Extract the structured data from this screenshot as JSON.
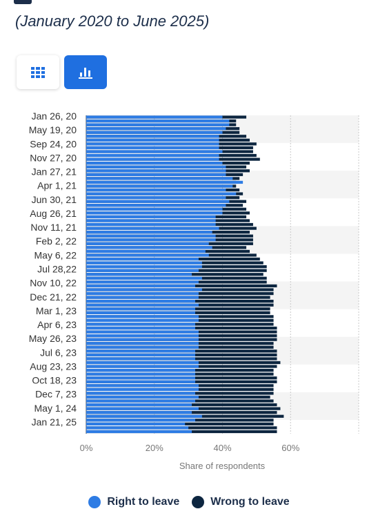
{
  "header": {
    "date_range": "(January 2020 to June 2025)"
  },
  "view_toggle": {
    "table_icon": "grid-icon",
    "chart_icon": "bar-chart-icon",
    "active": "chart"
  },
  "colors": {
    "right_to_leave": "#2e7ce4",
    "wrong_to_leave": "#0d2640",
    "toggle_active": "#1f6fe0",
    "band": "#f4f4f4"
  },
  "chart_data": {
    "type": "bar",
    "orientation": "horizontal",
    "xlabel": "Share of respondents",
    "xlim": [
      0,
      80
    ],
    "x_ticks": [
      "0%",
      "20%",
      "40%",
      "60%"
    ],
    "grid": true,
    "legend_placement": "bottom",
    "y_tick_labels": [
      "Jan 26, 20",
      "May 19, 20",
      "Sep 24, 20",
      "Nov 27, 20",
      "Jan 27, 21",
      "Apr 1, 21",
      "Jun 30, 21",
      "Aug 26, 21",
      "Nov 11, 21",
      "Feb 2, 22",
      "May 6, 22",
      "Jul 28,22",
      "Nov 10, 22",
      "Dec 21, 22",
      "Mar 1, 23",
      "Apr 6, 23",
      "May 26, 23",
      "Jul 6, 23",
      "Aug 23, 23",
      "Oct 18, 23",
      "Dec 7, 23",
      "May 1, 24",
      "Jan 21, 25"
    ],
    "series": [
      {
        "name": "Right to leave",
        "values": [
          40,
          42,
          42,
          41,
          40,
          39,
          39,
          39,
          39,
          40,
          39,
          39,
          40,
          41,
          41,
          41,
          43,
          46,
          43,
          41,
          44,
          41,
          42,
          41,
          40,
          40,
          38,
          38,
          38,
          39,
          37,
          38,
          38,
          36,
          37,
          35,
          36,
          33,
          34,
          34,
          33,
          31,
          34,
          33,
          32,
          34,
          33,
          33,
          32,
          33,
          32,
          32,
          33,
          33,
          32,
          32,
          33,
          33,
          33,
          33,
          33,
          32,
          32,
          32,
          33,
          33,
          32,
          32,
          32,
          32,
          33,
          33,
          32,
          33,
          32,
          31,
          33,
          31,
          34,
          32,
          29,
          30,
          31
        ]
      },
      {
        "name": "Wrong to leave",
        "values": [
          47,
          44,
          44,
          45,
          45,
          47,
          48,
          50,
          49,
          49,
          50,
          51,
          48,
          47,
          48,
          46,
          45,
          44,
          44,
          45,
          46,
          45,
          47,
          46,
          47,
          48,
          47,
          48,
          49,
          50,
          48,
          49,
          49,
          49,
          47,
          48,
          50,
          51,
          52,
          53,
          53,
          52,
          53,
          53,
          56,
          55,
          55,
          54,
          55,
          55,
          54,
          54,
          55,
          55,
          55,
          56,
          56,
          56,
          56,
          55,
          55,
          56,
          56,
          56,
          57,
          56,
          55,
          55,
          56,
          56,
          55,
          55,
          55,
          54,
          55,
          56,
          57,
          56,
          58,
          55,
          55,
          56,
          56
        ]
      }
    ]
  }
}
